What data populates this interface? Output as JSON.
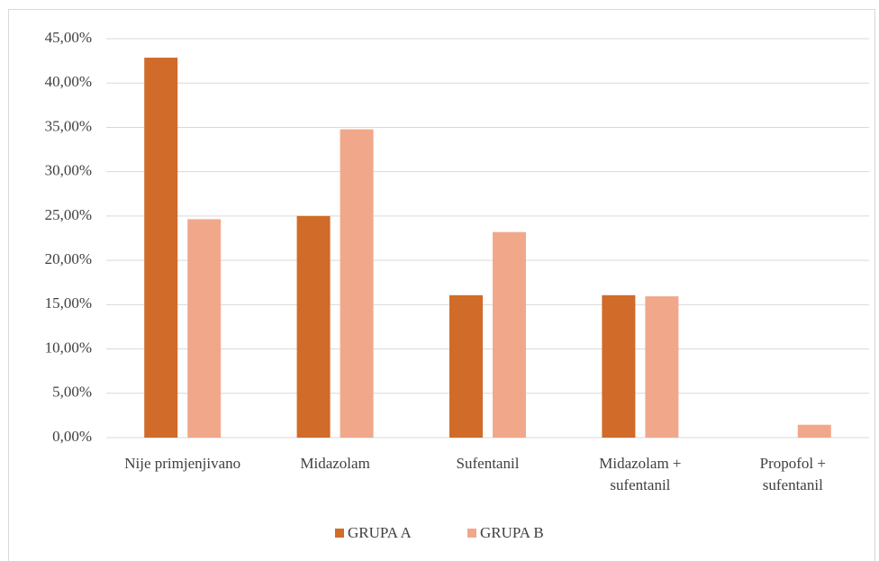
{
  "chart_data": {
    "type": "bar",
    "categories": [
      "Nije primjenjivano",
      "Midazolam",
      "Sufentanil",
      "Midazolam + sufentanil",
      "Propofol + sufentanil"
    ],
    "series": [
      {
        "name": "GRUPA A",
        "color": "#d06b29",
        "values": [
          42.86,
          25.0,
          16.07,
          16.07,
          0
        ]
      },
      {
        "name": "GRUPA B",
        "color": "#f1a88a",
        "values": [
          24.64,
          34.78,
          23.19,
          15.94,
          1.45
        ]
      }
    ],
    "ylim": [
      0,
      45
    ],
    "yticks": [
      {
        "value": 0,
        "label": "0,00%"
      },
      {
        "value": 5,
        "label": "5,00%"
      },
      {
        "value": 10,
        "label": "10,00%"
      },
      {
        "value": 15,
        "label": "15,00%"
      },
      {
        "value": 20,
        "label": "20,00%"
      },
      {
        "value": 25,
        "label": "25,00%"
      },
      {
        "value": 30,
        "label": "30,00%"
      },
      {
        "value": 35,
        "label": "35,00%"
      },
      {
        "value": 40,
        "label": "40,00%"
      },
      {
        "value": 45,
        "label": "45,00%"
      }
    ],
    "grid": true,
    "legend": "bottom"
  }
}
